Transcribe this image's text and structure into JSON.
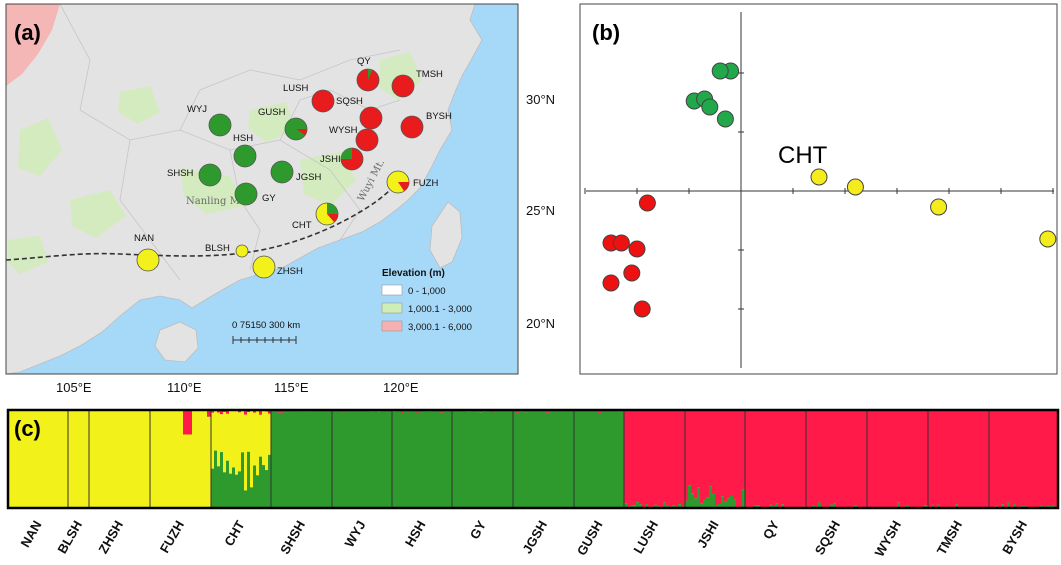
{
  "colors": {
    "yellow": "#f2f21a",
    "green": "#2e9a2e",
    "red": "#ff1a4a",
    "pcaRed": "#ee1111",
    "pcaGreen": "#22a84a",
    "pcaYellow": "#f5ec1e",
    "sea": "#a6d8f7",
    "land": "#e3e3e3"
  },
  "panel_a": {
    "label": "(a)",
    "x_ticks": [
      "105°E",
      "110°E",
      "115°E",
      "120°E"
    ],
    "y_ticks": [
      "30°N",
      "25°N",
      "20°N"
    ],
    "ranges": [
      "Nanling Mt.",
      "Wuyi Mt."
    ],
    "populations": [
      {
        "label": "NAN"
      },
      {
        "label": "BLSH"
      },
      {
        "label": "ZHSH"
      },
      {
        "label": "FUZH"
      },
      {
        "label": "CHT"
      },
      {
        "label": "SHSH"
      },
      {
        "label": "WYJ"
      },
      {
        "label": "HSH"
      },
      {
        "label": "GY"
      },
      {
        "label": "JGSH"
      },
      {
        "label": "GUSH"
      },
      {
        "label": "LUSH"
      },
      {
        "label": "JSHI"
      },
      {
        "label": "QY"
      },
      {
        "label": "SQSH"
      },
      {
        "label": "WYSH"
      },
      {
        "label": "TMSH"
      },
      {
        "label": "BYSH"
      }
    ],
    "legend": {
      "title": "Elevation (m)",
      "items": [
        {
          "label": "0 - 1,000",
          "color": "#ffffff"
        },
        {
          "label": "1,000.1 - 3,000",
          "color": "#cfeeb5"
        },
        {
          "label": "3,000.1 - 6,000",
          "color": "#f6b0b0"
        }
      ]
    },
    "scale_label": "0  75150    300  km"
  },
  "panel_b": {
    "label": "(b)",
    "annotation": "CHT",
    "points": [
      {
        "x": -0.2,
        "y": 3.0,
        "group": "green"
      },
      {
        "x": -0.4,
        "y": 3.0,
        "group": "green"
      },
      {
        "x": -0.9,
        "y": 2.25,
        "group": "green"
      },
      {
        "x": -0.7,
        "y": 2.3,
        "group": "green"
      },
      {
        "x": -0.6,
        "y": 2.1,
        "group": "green"
      },
      {
        "x": -0.3,
        "y": 1.8,
        "group": "green"
      },
      {
        "x": 1.5,
        "y": 0.35,
        "group": "yellow"
      },
      {
        "x": 2.2,
        "y": 0.1,
        "group": "yellow"
      },
      {
        "x": 3.8,
        "y": -0.4,
        "group": "yellow"
      },
      {
        "x": 5.9,
        "y": -1.2,
        "group": "yellow"
      },
      {
        "x": 6.6,
        "y": -1.5,
        "group": "yellow"
      },
      {
        "x": -1.8,
        "y": -0.3,
        "group": "red"
      },
      {
        "x": -2.5,
        "y": -1.3,
        "group": "red"
      },
      {
        "x": -2.3,
        "y": -1.3,
        "group": "red"
      },
      {
        "x": -2.0,
        "y": -1.45,
        "group": "red"
      },
      {
        "x": -2.1,
        "y": -2.05,
        "group": "red"
      },
      {
        "x": -2.5,
        "y": -2.3,
        "group": "red"
      },
      {
        "x": -1.9,
        "y": -2.95,
        "group": "red"
      }
    ]
  },
  "panel_c": {
    "label": "(c)",
    "populations": [
      "NAN",
      "BLSH",
      "ZHSH",
      "FUZH",
      "CHT",
      "SHSH",
      "WYJ",
      "HSH",
      "GY",
      "JGSH",
      "GUSH",
      "LUSH",
      "JSHI",
      "QY",
      "SQSH",
      "WYSH",
      "TMSH",
      "BYSH"
    ],
    "dominant": [
      "yellow",
      "yellow",
      "yellow",
      "yellow",
      "mixed",
      "green",
      "green",
      "green",
      "green",
      "green",
      "green",
      "red",
      "red",
      "red",
      "red",
      "red",
      "red",
      "red"
    ]
  }
}
